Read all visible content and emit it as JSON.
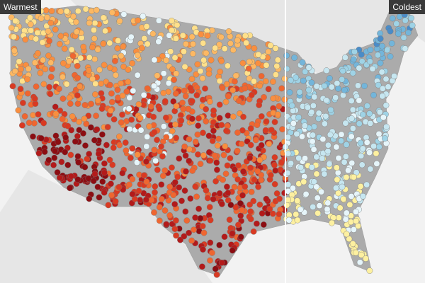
{
  "labels": {
    "left": "Warmest",
    "right": "Coldest"
  },
  "colors": {
    "background": "#f2f2f2",
    "land": "#ababab",
    "warm_scale": [
      "#ffe08a",
      "#fdb863",
      "#f98e3f",
      "#ef6630",
      "#d93a22",
      "#b31a1a",
      "#8c0d12"
    ],
    "cold_scale": [
      "#fdf0a0",
      "#e6f5fa",
      "#c6e6f0",
      "#9fd3e6",
      "#73b5da",
      "#4a8cc8",
      "#2a5aa8"
    ],
    "divider": "#ffffff"
  }
}
